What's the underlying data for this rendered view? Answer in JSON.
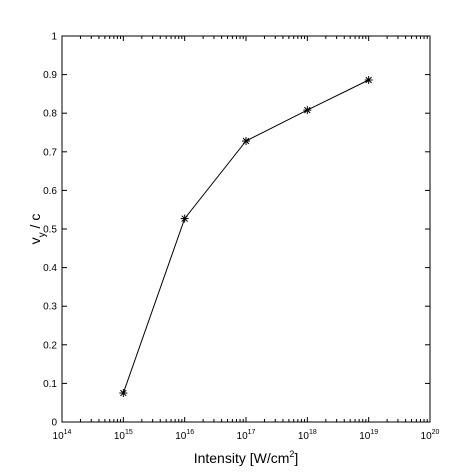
{
  "chart_data": {
    "type": "line",
    "title": "",
    "xlabel": {
      "prefix": "Intensity [W/cm",
      "sup": "2",
      "suffix": "]"
    },
    "ylabel": {
      "base": "v",
      "sub": "y",
      "suffix": " / c"
    },
    "xscale": "log",
    "xlim": [
      100000000000000.0,
      1e+20
    ],
    "ylim": [
      0,
      1
    ],
    "grid": false,
    "legend": "none",
    "marker": "asterisk",
    "line_color": "#000000",
    "x_ticks": [
      {
        "value": 100000000000000.0,
        "base": "10",
        "exp": "14"
      },
      {
        "value": 1000000000000000.0,
        "base": "10",
        "exp": "15"
      },
      {
        "value": 1e+16,
        "base": "10",
        "exp": "16"
      },
      {
        "value": 1e+17,
        "base": "10",
        "exp": "17"
      },
      {
        "value": 1e+18,
        "base": "10",
        "exp": "18"
      },
      {
        "value": 1e+19,
        "base": "10",
        "exp": "19"
      },
      {
        "value": 1e+20,
        "base": "10",
        "exp": "20"
      }
    ],
    "y_ticks": [
      {
        "value": 0,
        "label": "0"
      },
      {
        "value": 0.1,
        "label": "0.1"
      },
      {
        "value": 0.2,
        "label": "0.2"
      },
      {
        "value": 0.3,
        "label": "0.3"
      },
      {
        "value": 0.4,
        "label": "0.4"
      },
      {
        "value": 0.5,
        "label": "0.5"
      },
      {
        "value": 0.6,
        "label": "0.6"
      },
      {
        "value": 0.7,
        "label": "0.7"
      },
      {
        "value": 0.8,
        "label": "0.8"
      },
      {
        "value": 0.9,
        "label": "0.9"
      },
      {
        "value": 1,
        "label": "1"
      }
    ],
    "series": [
      {
        "x": [
          1000000000000000.0,
          1e+16,
          1e+17,
          1e+18,
          1e+19
        ],
        "y": [
          0.075,
          0.527,
          0.728,
          0.808,
          0.886
        ]
      }
    ]
  }
}
